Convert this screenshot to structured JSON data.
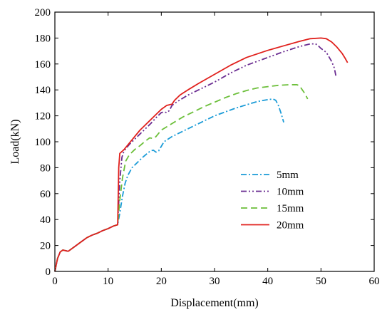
{
  "chart_data": {
    "type": "line",
    "title": "",
    "xlabel": "Displacement(mm)",
    "ylabel": "Load(kN)",
    "xlim": [
      0,
      60
    ],
    "ylim": [
      0,
      200
    ],
    "x_ticks": [
      0,
      10,
      20,
      30,
      40,
      50,
      60
    ],
    "y_ticks": [
      0,
      20,
      40,
      60,
      80,
      100,
      120,
      140,
      160,
      180,
      200
    ],
    "grid": false,
    "legend_position": "center-right",
    "series": [
      {
        "name": "5mm",
        "color": "#1a9bd7",
        "dash": "dashdot",
        "points": [
          [
            0,
            0
          ],
          [
            0.5,
            10
          ],
          [
            1,
            15
          ],
          [
            1.5,
            16.5
          ],
          [
            2,
            16
          ],
          [
            2.5,
            15.5
          ],
          [
            3,
            17
          ],
          [
            4,
            20
          ],
          [
            5,
            23
          ],
          [
            6,
            26
          ],
          [
            7,
            28
          ],
          [
            8,
            29.5
          ],
          [
            9,
            31.5
          ],
          [
            10,
            33
          ],
          [
            11,
            35
          ],
          [
            11.8,
            36
          ],
          [
            12.2,
            45
          ],
          [
            12.7,
            58
          ],
          [
            13.2,
            68
          ],
          [
            13.7,
            74
          ],
          [
            14.5,
            80
          ],
          [
            15.5,
            84
          ],
          [
            16.5,
            88
          ],
          [
            17.5,
            91.5
          ],
          [
            18,
            93
          ],
          [
            18.5,
            93.5
          ],
          [
            19,
            92
          ],
          [
            19.5,
            93
          ],
          [
            20.5,
            100
          ],
          [
            22,
            104
          ],
          [
            24,
            108
          ],
          [
            26,
            112
          ],
          [
            28,
            116
          ],
          [
            30,
            120
          ],
          [
            32,
            123
          ],
          [
            34,
            126
          ],
          [
            36,
            128.5
          ],
          [
            38,
            131
          ],
          [
            40,
            132.5
          ],
          [
            41,
            133
          ],
          [
            41.5,
            132
          ],
          [
            42,
            128
          ],
          [
            42.5,
            122
          ],
          [
            43,
            115
          ]
        ]
      },
      {
        "name": "10mm",
        "color": "#6a2c91",
        "dash": "dashdotdot",
        "points": [
          [
            0,
            0
          ],
          [
            0.5,
            10
          ],
          [
            1,
            15
          ],
          [
            1.5,
            16.5
          ],
          [
            2,
            16
          ],
          [
            2.5,
            15.5
          ],
          [
            3,
            17
          ],
          [
            4,
            20
          ],
          [
            5,
            23
          ],
          [
            6,
            26
          ],
          [
            7,
            28
          ],
          [
            8,
            29.5
          ],
          [
            9,
            31.5
          ],
          [
            10,
            33
          ],
          [
            11,
            35
          ],
          [
            11.8,
            36
          ],
          [
            12.2,
            70
          ],
          [
            12.6,
            88
          ],
          [
            13,
            93
          ],
          [
            14,
            98
          ],
          [
            15,
            102
          ],
          [
            16,
            106
          ],
          [
            17,
            110
          ],
          [
            18,
            114
          ],
          [
            19,
            118.5
          ],
          [
            20,
            122.5
          ],
          [
            20.5,
            123
          ],
          [
            21,
            122.5
          ],
          [
            21.5,
            124
          ],
          [
            22,
            128
          ],
          [
            23,
            131
          ],
          [
            25,
            136
          ],
          [
            27,
            140
          ],
          [
            30,
            146
          ],
          [
            33,
            153
          ],
          [
            36,
            159
          ],
          [
            40,
            165
          ],
          [
            43,
            169.5
          ],
          [
            46,
            173.5
          ],
          [
            48,
            175.5
          ],
          [
            49,
            175.5
          ],
          [
            49.5,
            174
          ],
          [
            50,
            172
          ],
          [
            51,
            169
          ],
          [
            52,
            162
          ],
          [
            52.5,
            157
          ],
          [
            52.8,
            151
          ]
        ]
      },
      {
        "name": "15mm",
        "color": "#6cbf3a",
        "dash": "dash",
        "points": [
          [
            0,
            0
          ],
          [
            0.5,
            10
          ],
          [
            1,
            15
          ],
          [
            1.5,
            16.5
          ],
          [
            2,
            16
          ],
          [
            2.5,
            15.5
          ],
          [
            3,
            17
          ],
          [
            4,
            20
          ],
          [
            5,
            23
          ],
          [
            6,
            26
          ],
          [
            7,
            28
          ],
          [
            8,
            29.5
          ],
          [
            9,
            31.5
          ],
          [
            10,
            33
          ],
          [
            11,
            35
          ],
          [
            11.8,
            36
          ],
          [
            12.2,
            55
          ],
          [
            12.7,
            72
          ],
          [
            13.3,
            85
          ],
          [
            14,
            90
          ],
          [
            15,
            94
          ],
          [
            16,
            97
          ],
          [
            17,
            100.5
          ],
          [
            17.8,
            103
          ],
          [
            18.5,
            102.5
          ],
          [
            19,
            104
          ],
          [
            20,
            109
          ],
          [
            22,
            114
          ],
          [
            24,
            119
          ],
          [
            26,
            123
          ],
          [
            28,
            127
          ],
          [
            30,
            130.5
          ],
          [
            32,
            134
          ],
          [
            34,
            137
          ],
          [
            36,
            139.5
          ],
          [
            38,
            141.5
          ],
          [
            40,
            142.5
          ],
          [
            42,
            143.5
          ],
          [
            44,
            144
          ],
          [
            45.5,
            144
          ],
          [
            46,
            143
          ],
          [
            46.5,
            140
          ],
          [
            47,
            137
          ],
          [
            47.5,
            133
          ]
        ]
      },
      {
        "name": "20mm",
        "color": "#e0201c",
        "dash": "solid",
        "points": [
          [
            0,
            0
          ],
          [
            0.5,
            10
          ],
          [
            1,
            15
          ],
          [
            1.5,
            16.5
          ],
          [
            2,
            16
          ],
          [
            2.5,
            15.5
          ],
          [
            3,
            17
          ],
          [
            4,
            20
          ],
          [
            5,
            23
          ],
          [
            6,
            26
          ],
          [
            7,
            28
          ],
          [
            8,
            29.5
          ],
          [
            9,
            31.5
          ],
          [
            10,
            33
          ],
          [
            11,
            35
          ],
          [
            11.8,
            36
          ],
          [
            12,
            80
          ],
          [
            12.2,
            91
          ],
          [
            13,
            94
          ],
          [
            14,
            99
          ],
          [
            15,
            104
          ],
          [
            16,
            109
          ],
          [
            17,
            113
          ],
          [
            18,
            117
          ],
          [
            19,
            121
          ],
          [
            20,
            125
          ],
          [
            21,
            128
          ],
          [
            21.5,
            128.5
          ],
          [
            22,
            129
          ],
          [
            22.5,
            132
          ],
          [
            23.5,
            136
          ],
          [
            25,
            140
          ],
          [
            27,
            145
          ],
          [
            30,
            152
          ],
          [
            33,
            159
          ],
          [
            36,
            165
          ],
          [
            40,
            170.5
          ],
          [
            43,
            174
          ],
          [
            46,
            177.5
          ],
          [
            48,
            179.5
          ],
          [
            50,
            180
          ],
          [
            51,
            179.5
          ],
          [
            52,
            177
          ],
          [
            53,
            173
          ],
          [
            54,
            168
          ],
          [
            54.6,
            164
          ],
          [
            55,
            161
          ]
        ]
      }
    ]
  }
}
